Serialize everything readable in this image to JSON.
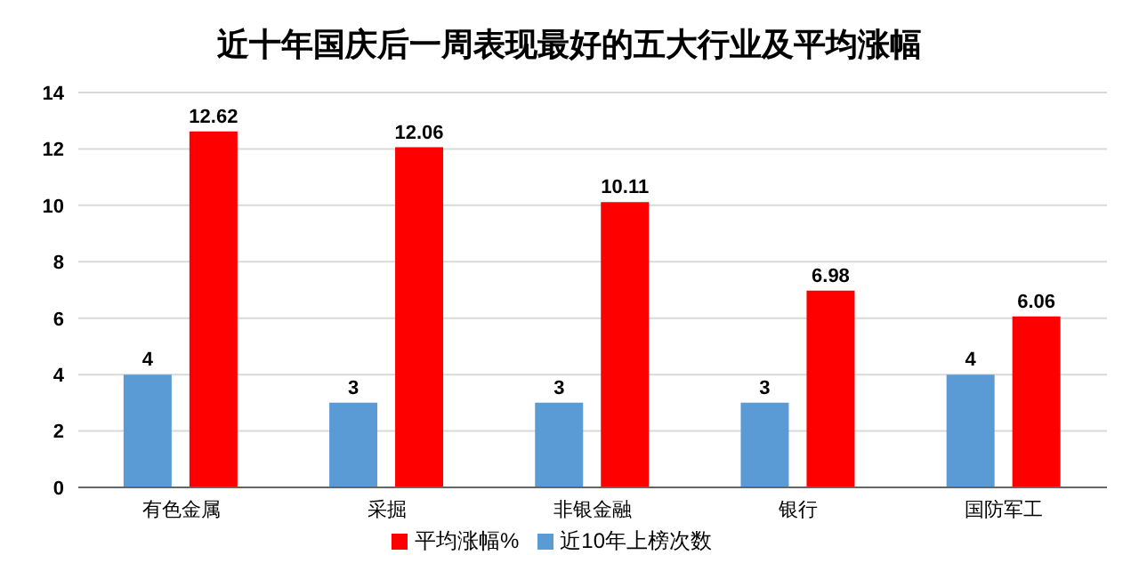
{
  "chart_data": {
    "type": "bar",
    "title": "近十年国庆后一周表现最好的五大行业及平均涨幅",
    "categories": [
      "有色金属",
      "采掘",
      "非银金融",
      "银行",
      "国防军工"
    ],
    "series": [
      {
        "name": "近10年上榜次数",
        "color": "#5b9bd5",
        "values": [
          4,
          3,
          3,
          3,
          4
        ]
      },
      {
        "name": "平均涨幅%",
        "color": "#ff0000",
        "values": [
          12.62,
          12.06,
          10.11,
          6.98,
          6.06
        ]
      }
    ],
    "ylim": [
      0,
      14
    ],
    "yticks": [
      0,
      2,
      4,
      6,
      8,
      10,
      12,
      14
    ],
    "grid": "y",
    "legend": "bottom",
    "data_labels": true
  }
}
